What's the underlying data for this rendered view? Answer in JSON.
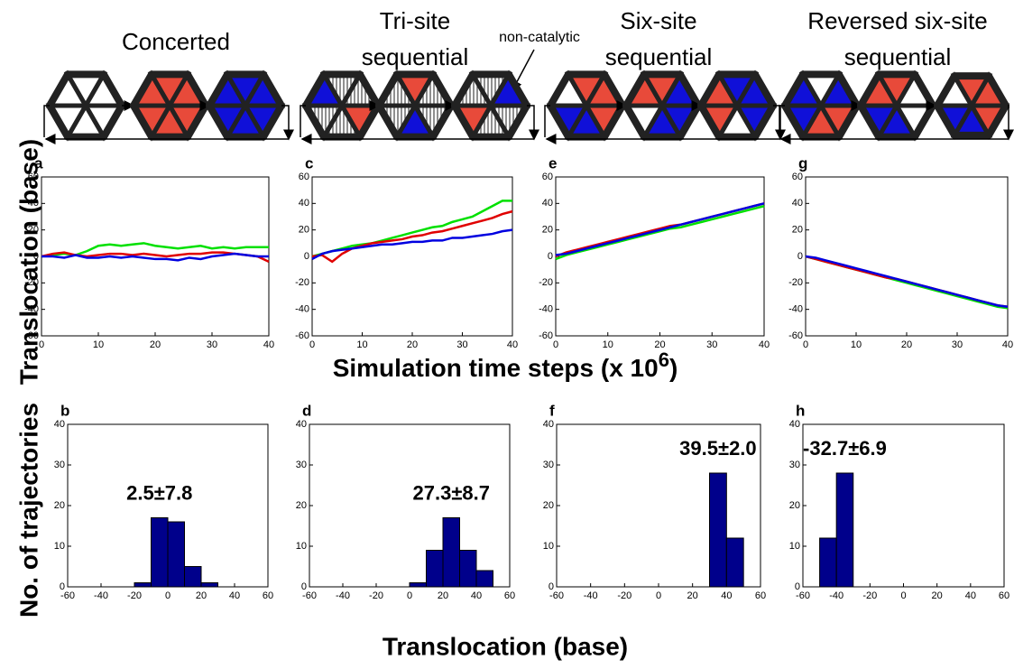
{
  "diagram": {
    "titles": [
      {
        "lines": [
          "Concerted"
        ]
      },
      {
        "lines": [
          "Tri-site",
          "sequential"
        ]
      },
      {
        "lines": [
          "Six-site",
          "sequential"
        ]
      },
      {
        "lines": [
          "Reversed six-site",
          "sequential"
        ]
      }
    ],
    "note": "non-catalytic"
  },
  "axis_labels": {
    "top_y": "Translocation (base)",
    "top_x": "Simulation time steps (x 10",
    "top_x_sup": "6",
    "top_x_end": ")",
    "bottom_y": "No. of trajectories",
    "bottom_x": "Translocation (base)"
  },
  "chart_data": [
    {
      "type": "line",
      "label": "a",
      "x": [
        0,
        2,
        4,
        6,
        8,
        10,
        12,
        14,
        16,
        18,
        20,
        22,
        24,
        26,
        28,
        30,
        32,
        34,
        36,
        38,
        40
      ],
      "xlim": [
        0,
        40
      ],
      "ylim": [
        -60,
        60
      ],
      "xticks": [
        0,
        10,
        20,
        30,
        40
      ],
      "yticks": [
        -60,
        -40,
        -20,
        0,
        20,
        40,
        60
      ],
      "series": [
        {
          "color": "#00e000",
          "values": [
            0,
            1,
            2,
            1,
            4,
            8,
            9,
            8,
            9,
            10,
            8,
            7,
            6,
            7,
            8,
            6,
            7,
            6,
            7,
            7,
            7
          ]
        },
        {
          "color": "#e00000",
          "values": [
            0,
            2,
            3,
            1,
            0,
            1,
            2,
            2,
            1,
            2,
            1,
            0,
            1,
            2,
            2,
            3,
            3,
            2,
            1,
            0,
            -4
          ]
        },
        {
          "color": "#0000e0",
          "values": [
            0,
            0,
            -1,
            1,
            -1,
            -1,
            0,
            -1,
            0,
            -1,
            -2,
            -2,
            -3,
            -1,
            -2,
            0,
            1,
            2,
            1,
            0,
            0
          ]
        }
      ]
    },
    {
      "type": "line",
      "label": "c",
      "x": [
        0,
        2,
        4,
        6,
        8,
        10,
        12,
        14,
        16,
        18,
        20,
        22,
        24,
        26,
        28,
        30,
        32,
        34,
        36,
        38,
        40
      ],
      "xlim": [
        0,
        40
      ],
      "ylim": [
        -60,
        60
      ],
      "xticks": [
        0,
        10,
        20,
        30,
        40
      ],
      "yticks": [
        -60,
        -40,
        -20,
        0,
        20,
        40,
        60
      ],
      "series": [
        {
          "color": "#00e000",
          "values": [
            0,
            2,
            4,
            6,
            8,
            9,
            10,
            12,
            14,
            16,
            18,
            20,
            22,
            23,
            26,
            28,
            30,
            34,
            38,
            42,
            42
          ]
        },
        {
          "color": "#e00000",
          "values": [
            0,
            1,
            -4,
            2,
            6,
            8,
            10,
            11,
            12,
            13,
            15,
            16,
            18,
            19,
            21,
            23,
            25,
            27,
            29,
            32,
            34
          ]
        },
        {
          "color": "#0000e0",
          "values": [
            -2,
            2,
            4,
            5,
            6,
            7,
            8,
            9,
            9,
            10,
            11,
            11,
            12,
            12,
            14,
            14,
            15,
            16,
            17,
            19,
            20
          ]
        }
      ]
    },
    {
      "type": "line",
      "label": "e",
      "x": [
        0,
        2,
        4,
        6,
        8,
        10,
        12,
        14,
        16,
        18,
        20,
        22,
        24,
        26,
        28,
        30,
        32,
        34,
        36,
        38,
        40
      ],
      "xlim": [
        0,
        40
      ],
      "ylim": [
        -60,
        60
      ],
      "xticks": [
        0,
        10,
        20,
        30,
        40
      ],
      "yticks": [
        -60,
        -40,
        -20,
        0,
        20,
        40,
        60
      ],
      "series": [
        {
          "color": "#00e000",
          "values": [
            -2,
            1,
            3,
            5,
            7,
            9,
            11,
            13,
            15,
            17,
            19,
            21,
            22,
            24,
            26,
            28,
            30,
            32,
            34,
            36,
            38
          ]
        },
        {
          "color": "#e00000",
          "values": [
            0,
            3,
            5,
            7,
            9,
            11,
            13,
            15,
            17,
            19,
            21,
            23,
            24,
            26,
            28,
            30,
            32,
            34,
            36,
            38,
            40
          ]
        },
        {
          "color": "#0000e0",
          "values": [
            1,
            2,
            4,
            6,
            8,
            10,
            12,
            14,
            16,
            18,
            20,
            22,
            24,
            26,
            28,
            30,
            32,
            34,
            36,
            38,
            40
          ]
        }
      ]
    },
    {
      "type": "line",
      "label": "g",
      "x": [
        0,
        2,
        4,
        6,
        8,
        10,
        12,
        14,
        16,
        18,
        20,
        22,
        24,
        26,
        28,
        30,
        32,
        34,
        36,
        38,
        40
      ],
      "xlim": [
        0,
        40
      ],
      "ylim": [
        -60,
        60
      ],
      "xticks": [
        0,
        10,
        20,
        30,
        40
      ],
      "yticks": [
        -60,
        -40,
        -20,
        0,
        20,
        40,
        60
      ],
      "series": [
        {
          "color": "#00e000",
          "values": [
            0,
            -2,
            -4,
            -6,
            -8,
            -10,
            -12,
            -14,
            -16,
            -18,
            -20,
            -22,
            -24,
            -26,
            -28,
            -30,
            -32,
            -34,
            -36,
            -38,
            -39
          ]
        },
        {
          "color": "#e00000",
          "values": [
            0,
            -2,
            -4,
            -6,
            -8,
            -10,
            -12,
            -14,
            -16,
            -17,
            -19,
            -21,
            -23,
            -25,
            -27,
            -29,
            -31,
            -33,
            -35,
            -37,
            -38
          ]
        },
        {
          "color": "#0000e0",
          "values": [
            0,
            -1,
            -3,
            -5,
            -7,
            -9,
            -11,
            -13,
            -15,
            -17,
            -19,
            -21,
            -23,
            -25,
            -27,
            -29,
            -31,
            -33,
            -35,
            -37,
            -38
          ]
        }
      ]
    },
    {
      "type": "histogram",
      "label": "b",
      "annotation": "2.5±7.8",
      "color": "#00008b",
      "bins": [
        -60,
        -50,
        -40,
        -30,
        -20,
        -10,
        0,
        10,
        20,
        30,
        40,
        50,
        60
      ],
      "counts": [
        0,
        0,
        0,
        0,
        1,
        17,
        16,
        5,
        1,
        0,
        0,
        0
      ],
      "xlim": [
        -60,
        60
      ],
      "ylim": [
        0,
        40
      ],
      "xticks": [
        -60,
        -40,
        -20,
        0,
        20,
        40,
        60
      ],
      "yticks": [
        0,
        10,
        20,
        30,
        40
      ]
    },
    {
      "type": "histogram",
      "label": "d",
      "annotation": "27.3±8.7",
      "color": "#00008b",
      "bins": [
        -60,
        -50,
        -40,
        -30,
        -20,
        -10,
        0,
        10,
        20,
        30,
        40,
        50,
        60
      ],
      "counts": [
        0,
        0,
        0,
        0,
        0,
        0,
        1,
        9,
        17,
        9,
        4,
        0
      ],
      "xlim": [
        -60,
        60
      ],
      "ylim": [
        0,
        40
      ],
      "xticks": [
        -60,
        -40,
        -20,
        0,
        20,
        40,
        60
      ],
      "yticks": [
        0,
        10,
        20,
        30,
        40
      ]
    },
    {
      "type": "histogram",
      "label": "f",
      "annotation": "39.5±2.0",
      "color": "#00008b",
      "bins": [
        -60,
        -50,
        -40,
        -30,
        -20,
        -10,
        0,
        10,
        20,
        30,
        40,
        50,
        60
      ],
      "counts": [
        0,
        0,
        0,
        0,
        0,
        0,
        0,
        0,
        0,
        28,
        12,
        0
      ],
      "xlim": [
        -60,
        60
      ],
      "ylim": [
        0,
        40
      ],
      "xticks": [
        -60,
        -40,
        -20,
        0,
        20,
        40,
        60
      ],
      "yticks": [
        0,
        10,
        20,
        30,
        40
      ]
    },
    {
      "type": "histogram",
      "label": "h",
      "annotation": "-32.7±6.9",
      "color": "#00008b",
      "bins": [
        -60,
        -50,
        -40,
        -30,
        -20,
        -10,
        0,
        10,
        20,
        30,
        40,
        50,
        60
      ],
      "counts": [
        0,
        12,
        28,
        0,
        0,
        0,
        0,
        0,
        0,
        0,
        0,
        0
      ],
      "xlim": [
        -60,
        60
      ],
      "ylim": [
        0,
        40
      ],
      "xticks": [
        -60,
        -40,
        -20,
        0,
        20,
        40,
        60
      ],
      "yticks": [
        0,
        10,
        20,
        30,
        40
      ]
    }
  ]
}
